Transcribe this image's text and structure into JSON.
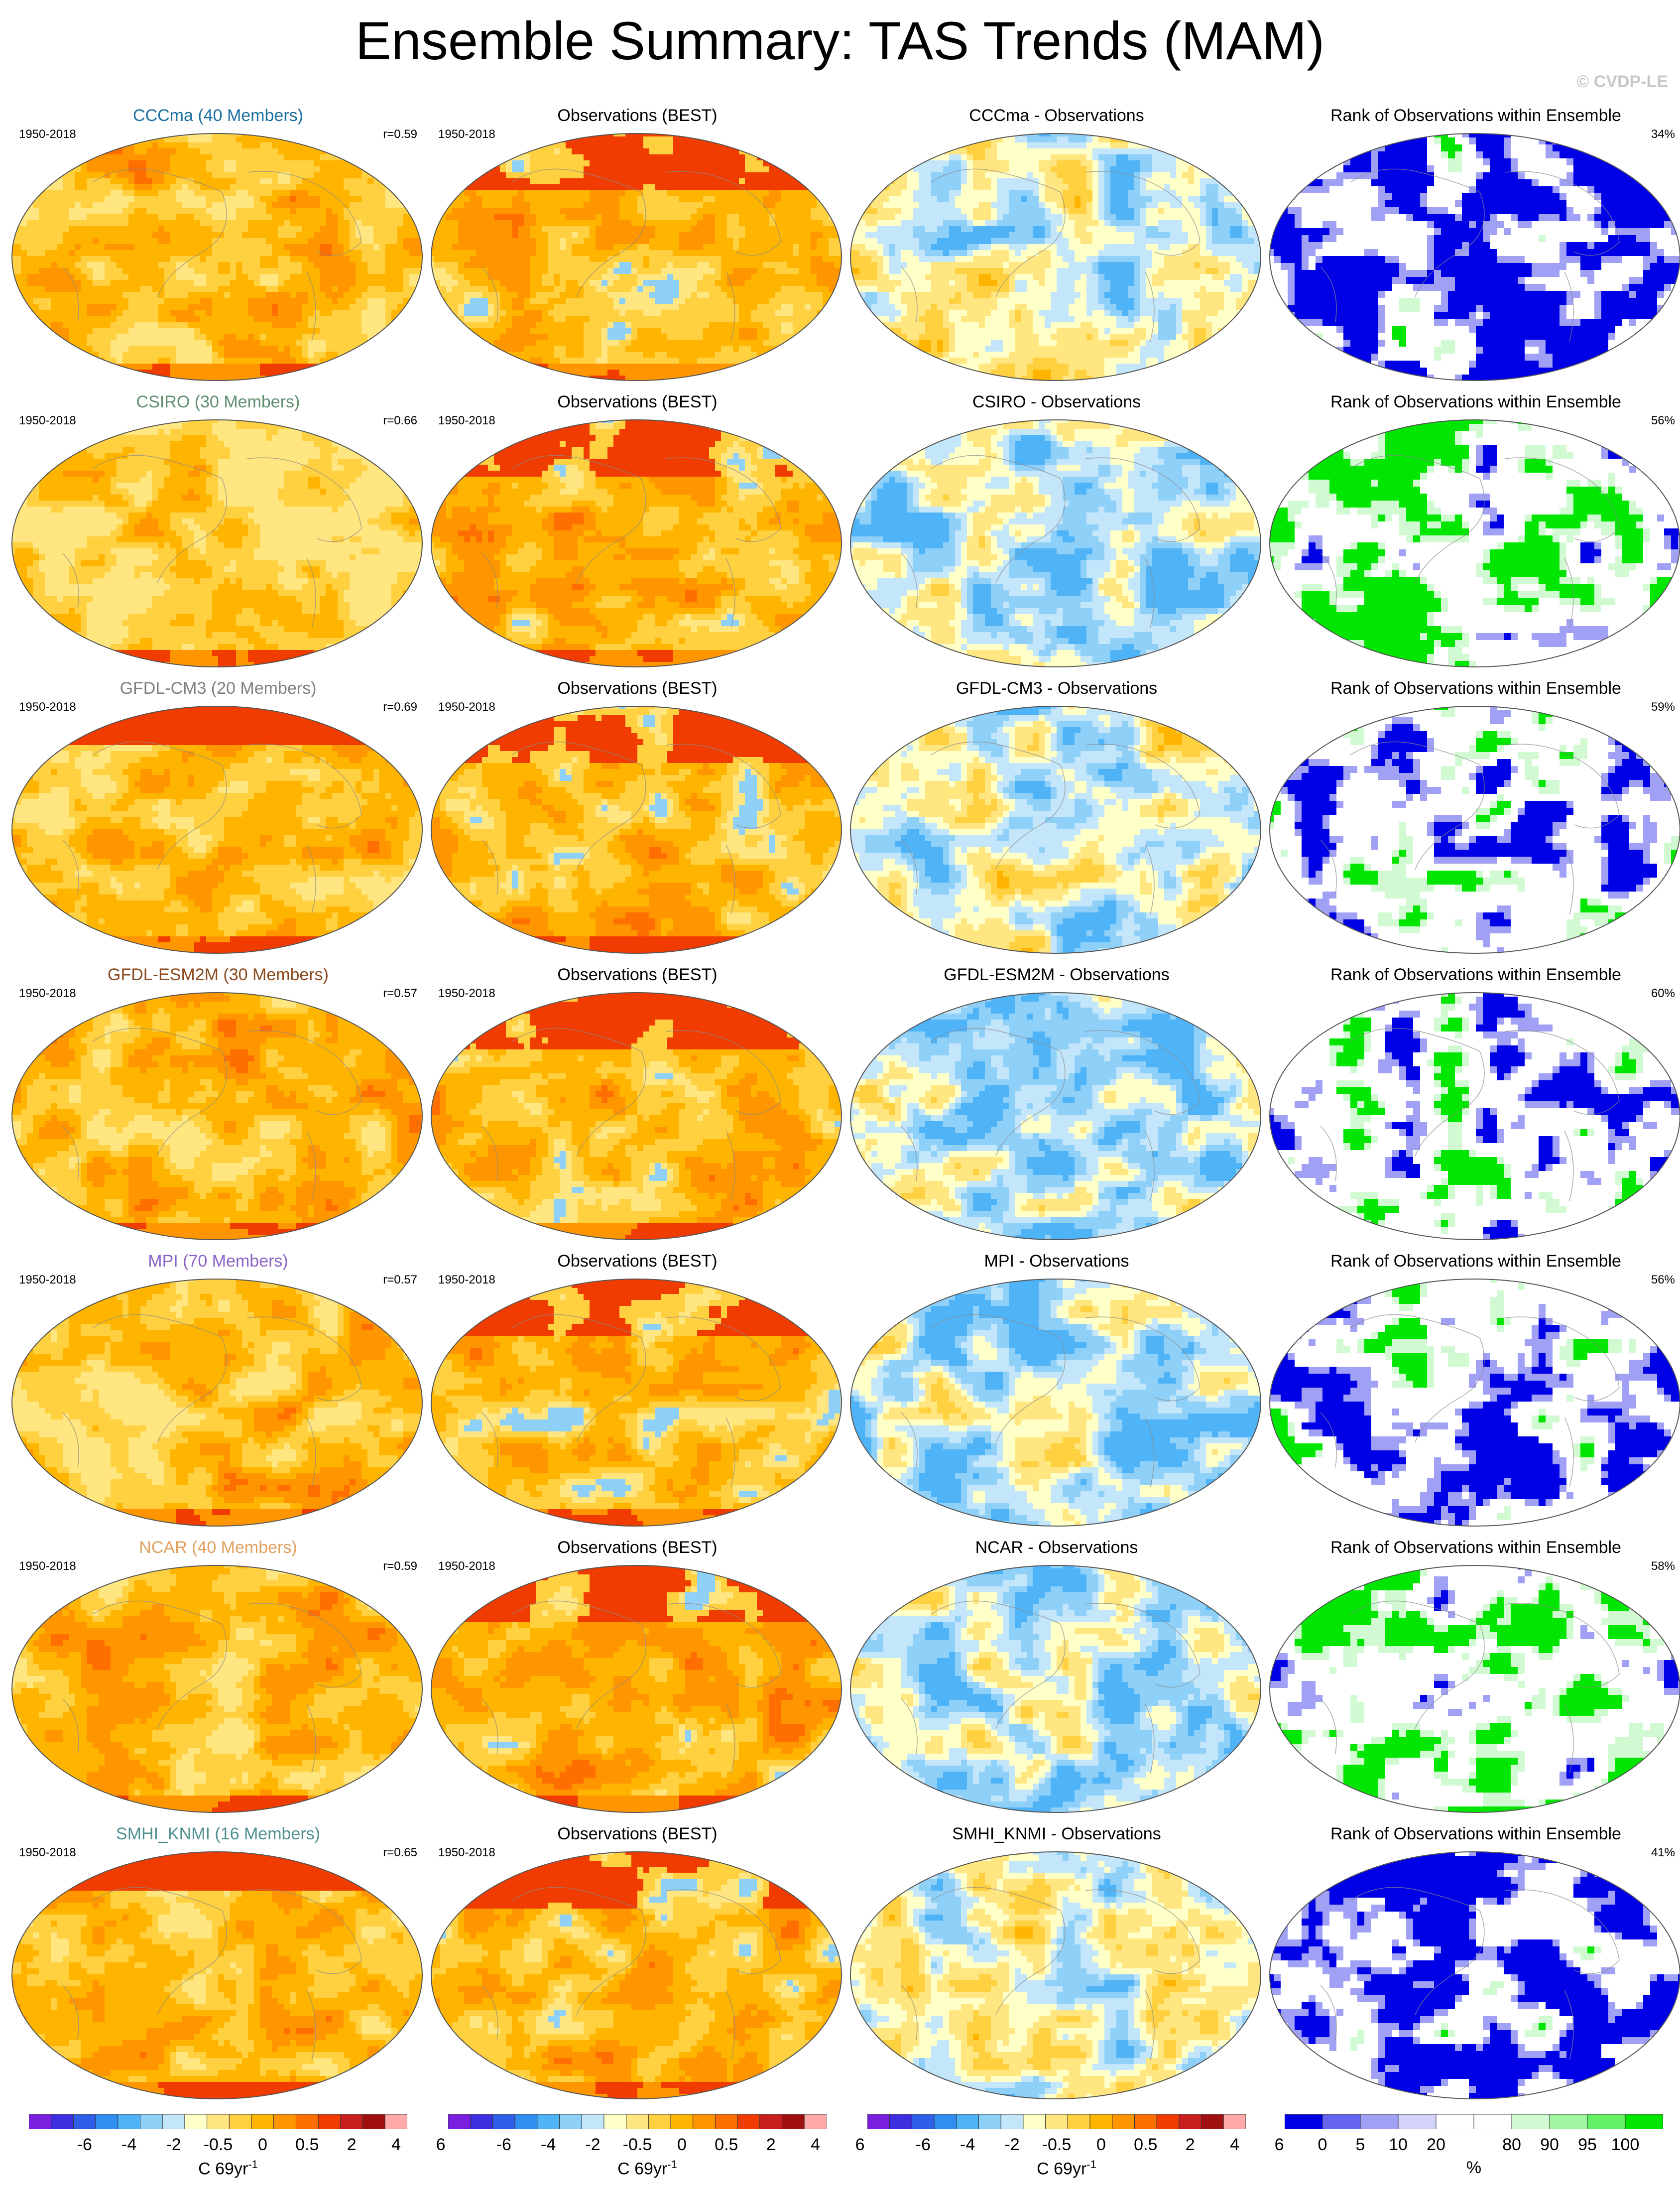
{
  "title": "Ensemble Summary: TAS Trends (MAM)",
  "credit": "© CVDP-LE",
  "rows": [
    {
      "model": {
        "title": "CCCma (40 Members)",
        "title_color": "#1a6fa0",
        "period": "1950-2018",
        "stat": "r=0.59",
        "pattern": "model-warm"
      },
      "obs": {
        "title": "Observations (BEST)",
        "period": "1950-2018",
        "pattern": "obs"
      },
      "diff": {
        "title": "CCCma - Observations",
        "pattern": "diff-mixed"
      },
      "rank": {
        "title": "Rank of Observations within Ensemble",
        "stat": "34%",
        "pattern": "rank-blue"
      }
    },
    {
      "model": {
        "title": "CSIRO (30 Members)",
        "title_color": "#5f8f6f",
        "period": "1950-2018",
        "stat": "r=0.66",
        "pattern": "model-mild"
      },
      "obs": {
        "title": "Observations (BEST)",
        "period": "1950-2018",
        "pattern": "obs"
      },
      "diff": {
        "title": "CSIRO - Observations",
        "pattern": "diff-cool"
      },
      "rank": {
        "title": "Rank of Observations within Ensemble",
        "stat": "56%",
        "pattern": "rank-green"
      }
    },
    {
      "model": {
        "title": "GFDL-CM3 (20 Members)",
        "title_color": "#7f7f7f",
        "period": "1950-2018",
        "stat": "r=0.69",
        "pattern": "model-hot"
      },
      "obs": {
        "title": "Observations (BEST)",
        "period": "1950-2018",
        "pattern": "obs"
      },
      "diff": {
        "title": "GFDL-CM3 - Observations",
        "pattern": "diff-mixed"
      },
      "rank": {
        "title": "Rank of Observations within Ensemble",
        "stat": "59%",
        "pattern": "rank-mixed"
      }
    },
    {
      "model": {
        "title": "GFDL-ESM2M (30 Members)",
        "title_color": "#8b4a1f",
        "period": "1950-2018",
        "stat": "r=0.57",
        "pattern": "model-warm"
      },
      "obs": {
        "title": "Observations (BEST)",
        "period": "1950-2018",
        "pattern": "obs"
      },
      "diff": {
        "title": "GFDL-ESM2M - Observations",
        "pattern": "diff-cool"
      },
      "rank": {
        "title": "Rank of Observations within Ensemble",
        "stat": "60%",
        "pattern": "rank-mixed"
      }
    },
    {
      "model": {
        "title": "MPI (70 Members)",
        "title_color": "#8a63c8",
        "period": "1950-2018",
        "stat": "r=0.57",
        "pattern": "model-warm"
      },
      "obs": {
        "title": "Observations (BEST)",
        "period": "1950-2018",
        "pattern": "obs"
      },
      "diff": {
        "title": "MPI - Observations",
        "pattern": "diff-cool"
      },
      "rank": {
        "title": "Rank of Observations within Ensemble",
        "stat": "56%",
        "pattern": "rank-mixed"
      }
    },
    {
      "model": {
        "title": "NCAR (40 Members)",
        "title_color": "#e0a060",
        "period": "1950-2018",
        "stat": "r=0.59",
        "pattern": "model-warm"
      },
      "obs": {
        "title": "Observations (BEST)",
        "period": "1950-2018",
        "pattern": "obs"
      },
      "diff": {
        "title": "NCAR - Observations",
        "pattern": "diff-cool"
      },
      "rank": {
        "title": "Rank of Observations within Ensemble",
        "stat": "58%",
        "pattern": "rank-green"
      }
    },
    {
      "model": {
        "title": "SMHI_KNMI (16 Members)",
        "title_color": "#4f8f8f",
        "period": "1950-2018",
        "stat": "r=0.65",
        "pattern": "model-hot"
      },
      "obs": {
        "title": "Observations (BEST)",
        "period": "1950-2018",
        "pattern": "obs"
      },
      "diff": {
        "title": "SMHI_KNMI - Observations",
        "pattern": "diff-mixed"
      },
      "rank": {
        "title": "Rank of Observations within Ensemble",
        "stat": "41%",
        "pattern": "rank-blue"
      }
    }
  ],
  "colorbars": {
    "trend": {
      "colors": [
        "#7a1fe0",
        "#3b2fe0",
        "#2f5fe8",
        "#2f8ff0",
        "#4fb3f8",
        "#8fd0f8",
        "#c4e6fa",
        "#ffffc8",
        "#ffe680",
        "#ffd040",
        "#ffb400",
        "#ff9600",
        "#ff6e00",
        "#f03c00",
        "#c81e1e",
        "#a01010",
        "#ffaaaa"
      ],
      "labels": [
        "-6",
        "-4",
        "-2",
        "-0.5",
        "0",
        "0.5",
        "2",
        "4",
        "6"
      ],
      "unit": "C 69yr",
      "unit_sup": "-1"
    },
    "rank": {
      "colors": [
        "#0000e6",
        "#6464f0",
        "#a0a0f5",
        "#d2d2fa",
        "#ffffff",
        "#ffffff",
        "#d2fad2",
        "#a0f5a0",
        "#64f064",
        "#00e600"
      ],
      "labels": [
        "0",
        "5",
        "10",
        "20",
        "80",
        "90",
        "95",
        "100"
      ],
      "unit": "%"
    }
  }
}
